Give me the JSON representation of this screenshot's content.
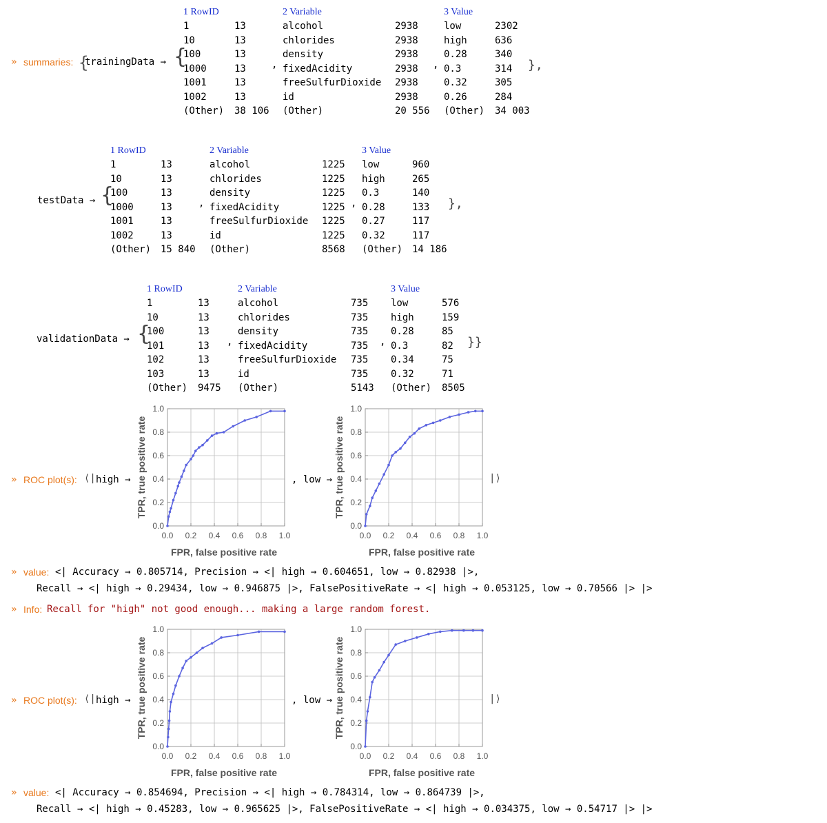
{
  "prompt_marker": "»",
  "summaries": {
    "label": "summaries:",
    "datasets": [
      {
        "name": "trainingData",
        "arrow": "→",
        "columns": [
          {
            "header": "1 RowID",
            "rows": [
              [
                "1",
                "13"
              ],
              [
                "10",
                "13"
              ],
              [
                "100",
                "13"
              ],
              [
                "1000",
                "13"
              ],
              [
                "1001",
                "13"
              ],
              [
                "1002",
                "13"
              ],
              [
                "(Other)",
                "38 106"
              ]
            ]
          },
          {
            "header": "2 Variable",
            "rows": [
              [
                "alcohol",
                "2938"
              ],
              [
                "chlorides",
                "2938"
              ],
              [
                "density",
                "2938"
              ],
              [
                "fixedAcidity",
                "2938"
              ],
              [
                "freeSulfurDioxide",
                "2938"
              ],
              [
                "id",
                "2938"
              ],
              [
                "(Other)",
                "20 556"
              ]
            ]
          },
          {
            "header": "3 Value",
            "rows": [
              [
                "low",
                "2302"
              ],
              [
                "high",
                "636"
              ],
              [
                "0.28",
                "340"
              ],
              [
                "0.3",
                "314"
              ],
              [
                "0.32",
                "305"
              ],
              [
                "0.26",
                "284"
              ],
              [
                "(Other)",
                "34 003"
              ]
            ]
          }
        ],
        "close": "},"
      },
      {
        "name": "testData",
        "arrow": "→",
        "columns": [
          {
            "header": "1 RowID",
            "rows": [
              [
                "1",
                "13"
              ],
              [
                "10",
                "13"
              ],
              [
                "100",
                "13"
              ],
              [
                "1000",
                "13"
              ],
              [
                "1001",
                "13"
              ],
              [
                "1002",
                "13"
              ],
              [
                "(Other)",
                "15 840"
              ]
            ]
          },
          {
            "header": "2 Variable",
            "rows": [
              [
                "alcohol",
                "1225"
              ],
              [
                "chlorides",
                "1225"
              ],
              [
                "density",
                "1225"
              ],
              [
                "fixedAcidity",
                "1225"
              ],
              [
                "freeSulfurDioxide",
                "1225"
              ],
              [
                "id",
                "1225"
              ],
              [
                "(Other)",
                "8568"
              ]
            ]
          },
          {
            "header": "3 Value",
            "rows": [
              [
                "low",
                "960"
              ],
              [
                "high",
                "265"
              ],
              [
                "0.3",
                "140"
              ],
              [
                "0.28",
                "133"
              ],
              [
                "0.27",
                "117"
              ],
              [
                "0.32",
                "117"
              ],
              [
                "(Other)",
                "14 186"
              ]
            ]
          }
        ],
        "close": "},"
      },
      {
        "name": "validationData",
        "arrow": "→",
        "columns": [
          {
            "header": "1 RowID",
            "rows": [
              [
                "1",
                "13"
              ],
              [
                "10",
                "13"
              ],
              [
                "100",
                "13"
              ],
              [
                "101",
                "13"
              ],
              [
                "102",
                "13"
              ],
              [
                "103",
                "13"
              ],
              [
                "(Other)",
                "9475"
              ]
            ]
          },
          {
            "header": "2 Variable",
            "rows": [
              [
                "alcohol",
                "735"
              ],
              [
                "chlorides",
                "735"
              ],
              [
                "density",
                "735"
              ],
              [
                "fixedAcidity",
                "735"
              ],
              [
                "freeSulfurDioxide",
                "735"
              ],
              [
                "id",
                "735"
              ],
              [
                "(Other)",
                "5143"
              ]
            ]
          },
          {
            "header": "3 Value",
            "rows": [
              [
                "low",
                "576"
              ],
              [
                "high",
                "159"
              ],
              [
                "0.28",
                "85"
              ],
              [
                "0.3",
                "82"
              ],
              [
                "0.34",
                "75"
              ],
              [
                "0.32",
                "71"
              ],
              [
                "(Other)",
                "8505"
              ]
            ]
          }
        ],
        "close": "}}"
      }
    ]
  },
  "roc1": {
    "label": "ROC plot(s):",
    "open": "⟨|",
    "key_high": "high →",
    "sep_low": ", low →",
    "close": "|⟩"
  },
  "value1": {
    "label": "value:",
    "line1": "<| Accuracy → 0.805714, Precision → <| high → 0.604651, low → 0.82938 |>,",
    "line2": "Recall → <| high → 0.29434, low → 0.946875 |>, FalsePositiveRate → <| high → 0.053125, low → 0.70566 |> |>"
  },
  "info": {
    "label": "Info:",
    "text": "Recall for \"high\" not good enough... making a large random forest."
  },
  "roc2": {
    "label": "ROC plot(s):",
    "open": "⟨|",
    "key_high": "high →",
    "sep_low": ", low →",
    "close": "|⟩"
  },
  "value2": {
    "label": "value:",
    "line1": "<| Accuracy → 0.854694, Precision → <| high → 0.784314, low → 0.864739 |>,",
    "line2": "Recall → <| high → 0.45283, low → 0.965625 |>, FalsePositiveRate → <| high → 0.034375, low → 0.54717 |> |>"
  },
  "chart_data": [
    {
      "type": "line",
      "xlabel": "FPR, false positive rate",
      "ylabel": "TPR, true positive rate",
      "xlim": [
        0,
        1
      ],
      "ylim": [
        0,
        1
      ],
      "xticks": [
        "0.0",
        "0.2",
        "0.4",
        "0.6",
        "0.8",
        "1.0"
      ],
      "yticks": [
        "0.0",
        "0.2",
        "0.4",
        "0.6",
        "0.8",
        "1.0"
      ],
      "grid": true,
      "color": "#5b64e0",
      "series": [
        {
          "points": [
            [
              0,
              0
            ],
            [
              0.01,
              0.08
            ],
            [
              0.02,
              0.12
            ],
            [
              0.03,
              0.15
            ],
            [
              0.05,
              0.22
            ],
            [
              0.07,
              0.28
            ],
            [
              0.09,
              0.34
            ],
            [
              0.1,
              0.37
            ],
            [
              0.12,
              0.42
            ],
            [
              0.14,
              0.47
            ],
            [
              0.16,
              0.52
            ],
            [
              0.2,
              0.57
            ],
            [
              0.22,
              0.6
            ],
            [
              0.24,
              0.64
            ],
            [
              0.27,
              0.67
            ],
            [
              0.3,
              0.69
            ],
            [
              0.34,
              0.73
            ],
            [
              0.38,
              0.77
            ],
            [
              0.42,
              0.79
            ],
            [
              0.48,
              0.8
            ],
            [
              0.56,
              0.85
            ],
            [
              0.66,
              0.9
            ],
            [
              0.76,
              0.93
            ],
            [
              0.88,
              0.98
            ],
            [
              1.0,
              0.98
            ]
          ]
        }
      ]
    },
    {
      "type": "line",
      "xlabel": "FPR, false positive rate",
      "ylabel": "TPR, true positive rate",
      "xlim": [
        0,
        1
      ],
      "ylim": [
        0,
        1
      ],
      "xticks": [
        "0.0",
        "0.2",
        "0.4",
        "0.6",
        "0.8",
        "1.0"
      ],
      "yticks": [
        "0.0",
        "0.2",
        "0.4",
        "0.6",
        "0.8",
        "1.0"
      ],
      "grid": true,
      "color": "#5b64e0",
      "series": [
        {
          "points": [
            [
              0,
              0
            ],
            [
              0.01,
              0.1
            ],
            [
              0.04,
              0.17
            ],
            [
              0.06,
              0.24
            ],
            [
              0.09,
              0.3
            ],
            [
              0.12,
              0.36
            ],
            [
              0.16,
              0.44
            ],
            [
              0.2,
              0.52
            ],
            [
              0.23,
              0.6
            ],
            [
              0.26,
              0.63
            ],
            [
              0.3,
              0.66
            ],
            [
              0.34,
              0.71
            ],
            [
              0.38,
              0.76
            ],
            [
              0.42,
              0.79
            ],
            [
              0.46,
              0.83
            ],
            [
              0.52,
              0.86
            ],
            [
              0.58,
              0.88
            ],
            [
              0.64,
              0.9
            ],
            [
              0.72,
              0.93
            ],
            [
              0.8,
              0.95
            ],
            [
              0.88,
              0.97
            ],
            [
              0.94,
              0.98
            ],
            [
              1.0,
              0.98
            ]
          ]
        }
      ]
    },
    {
      "type": "line",
      "xlabel": "FPR, false positive rate",
      "ylabel": "TPR, true positive rate",
      "xlim": [
        0,
        1
      ],
      "ylim": [
        0,
        1
      ],
      "xticks": [
        "0.0",
        "0.2",
        "0.4",
        "0.6",
        "0.8",
        "1.0"
      ],
      "yticks": [
        "0.0",
        "0.2",
        "0.4",
        "0.6",
        "0.8",
        "1.0"
      ],
      "grid": true,
      "color": "#5b64e0",
      "series": [
        {
          "points": [
            [
              0,
              0
            ],
            [
              0.005,
              0.08
            ],
            [
              0.01,
              0.15
            ],
            [
              0.015,
              0.22
            ],
            [
              0.02,
              0.3
            ],
            [
              0.03,
              0.38
            ],
            [
              0.05,
              0.45
            ],
            [
              0.07,
              0.52
            ],
            [
              0.1,
              0.6
            ],
            [
              0.13,
              0.67
            ],
            [
              0.16,
              0.73
            ],
            [
              0.2,
              0.76
            ],
            [
              0.25,
              0.8
            ],
            [
              0.3,
              0.84
            ],
            [
              0.38,
              0.88
            ],
            [
              0.46,
              0.93
            ],
            [
              0.6,
              0.95
            ],
            [
              0.78,
              0.98
            ],
            [
              1.0,
              0.98
            ]
          ]
        }
      ]
    },
    {
      "type": "line",
      "xlabel": "FPR, false positive rate",
      "ylabel": "TPR, true positive rate",
      "xlim": [
        0,
        1
      ],
      "ylim": [
        0,
        1
      ],
      "xticks": [
        "0.0",
        "0.2",
        "0.4",
        "0.6",
        "0.8",
        "1.0"
      ],
      "yticks": [
        "0.0",
        "0.2",
        "0.4",
        "0.6",
        "0.8",
        "1.0"
      ],
      "grid": true,
      "color": "#5b64e0",
      "series": [
        {
          "points": [
            [
              0,
              0
            ],
            [
              0.01,
              0.22
            ],
            [
              0.02,
              0.3
            ],
            [
              0.04,
              0.42
            ],
            [
              0.06,
              0.55
            ],
            [
              0.08,
              0.59
            ],
            [
              0.12,
              0.65
            ],
            [
              0.16,
              0.72
            ],
            [
              0.2,
              0.78
            ],
            [
              0.26,
              0.87
            ],
            [
              0.34,
              0.9
            ],
            [
              0.44,
              0.93
            ],
            [
              0.54,
              0.96
            ],
            [
              0.64,
              0.98
            ],
            [
              0.74,
              0.99
            ],
            [
              0.84,
              0.99
            ],
            [
              0.92,
              0.99
            ],
            [
              1.0,
              0.99
            ]
          ]
        }
      ]
    }
  ]
}
